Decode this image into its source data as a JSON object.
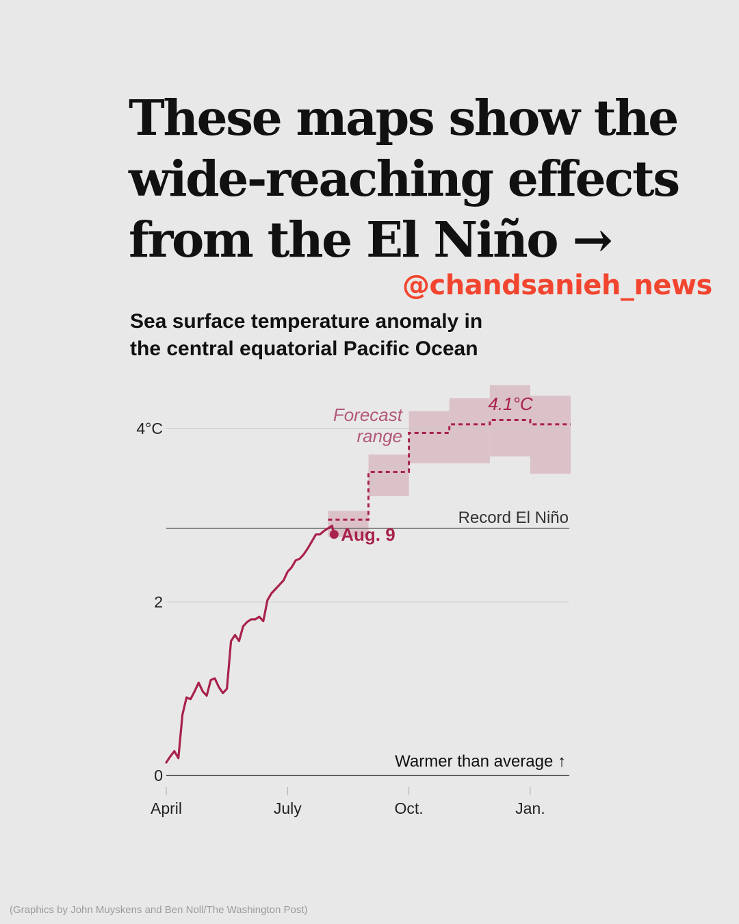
{
  "headline": {
    "lines": [
      "These maps show the",
      "wide-reaching effects",
      "from the El Niño →"
    ]
  },
  "watermark": "@chandsanieh_news",
  "subtitle": {
    "lines": [
      "Sea surface temperature anomaly in",
      "the central equatorial Pacific Ocean"
    ]
  },
  "credit": "(Graphics by John Muyskens and Ben Noll/The Washington Post)",
  "colors": {
    "background": "#e9e8e8",
    "series": "#a8224b",
    "forecast_band": "#dbc1c8",
    "watermark": "#f2452f"
  },
  "chart_data": {
    "type": "line",
    "x_unit": "months since April 1",
    "xlim": [
      0,
      10
    ],
    "ylim": [
      0,
      4.5
    ],
    "x_ticks": [
      {
        "x": 0,
        "label": "April"
      },
      {
        "x": 3,
        "label": "July"
      },
      {
        "x": 6,
        "label": "Oct."
      },
      {
        "x": 9,
        "label": "Jan."
      }
    ],
    "y_ticks": [
      {
        "y": 0,
        "label": "0"
      },
      {
        "y": 2,
        "label": "2"
      },
      {
        "y": 4,
        "label": "4°C"
      }
    ],
    "reference_lines": [
      {
        "y": 2.85,
        "label": "Record El Niño"
      },
      {
        "y": 0,
        "label": "Warmer than average ↑"
      }
    ],
    "observed": {
      "x": [
        0,
        0.1,
        0.2,
        0.3,
        0.4,
        0.5,
        0.6,
        0.7,
        0.8,
        0.9,
        1.0,
        1.1,
        1.2,
        1.3,
        1.4,
        1.5,
        1.6,
        1.7,
        1.8,
        1.9,
        2.0,
        2.1,
        2.2,
        2.3,
        2.4,
        2.5,
        2.6,
        2.7,
        2.8,
        2.9,
        3.0,
        3.1,
        3.2,
        3.3,
        3.4,
        3.5,
        3.6,
        3.7,
        3.8,
        3.9,
        4.0,
        4.1,
        4.15
      ],
      "y": [
        0.15,
        0.22,
        0.28,
        0.2,
        0.7,
        0.9,
        0.88,
        0.97,
        1.07,
        0.97,
        0.92,
        1.1,
        1.12,
        1.02,
        0.95,
        1.0,
        1.55,
        1.62,
        1.55,
        1.72,
        1.77,
        1.8,
        1.8,
        1.83,
        1.78,
        2.02,
        2.1,
        2.15,
        2.2,
        2.25,
        2.35,
        2.4,
        2.48,
        2.5,
        2.55,
        2.62,
        2.7,
        2.78,
        2.78,
        2.82,
        2.85,
        2.88,
        2.78
      ]
    },
    "marker": {
      "x": 4.15,
      "y": 2.78,
      "label": "Aug. 9"
    },
    "forecast": {
      "label_lines": [
        "Forecast",
        "range"
      ],
      "peak_label": "4.1°C",
      "steps": [
        {
          "x0": 4.0,
          "x1": 5.0,
          "mid": 2.95,
          "low": 2.75,
          "high": 3.05
        },
        {
          "x0": 5.0,
          "x1": 6.0,
          "mid": 3.5,
          "low": 3.22,
          "high": 3.7
        },
        {
          "x0": 6.0,
          "x1": 7.0,
          "mid": 3.95,
          "low": 3.6,
          "high": 4.2
        },
        {
          "x0": 7.0,
          "x1": 8.0,
          "mid": 4.05,
          "low": 3.6,
          "high": 4.35
        },
        {
          "x0": 8.0,
          "x1": 9.0,
          "mid": 4.1,
          "low": 3.68,
          "high": 4.5
        },
        {
          "x0": 9.0,
          "x1": 10.0,
          "mid": 4.05,
          "low": 3.48,
          "high": 4.38
        }
      ]
    }
  }
}
